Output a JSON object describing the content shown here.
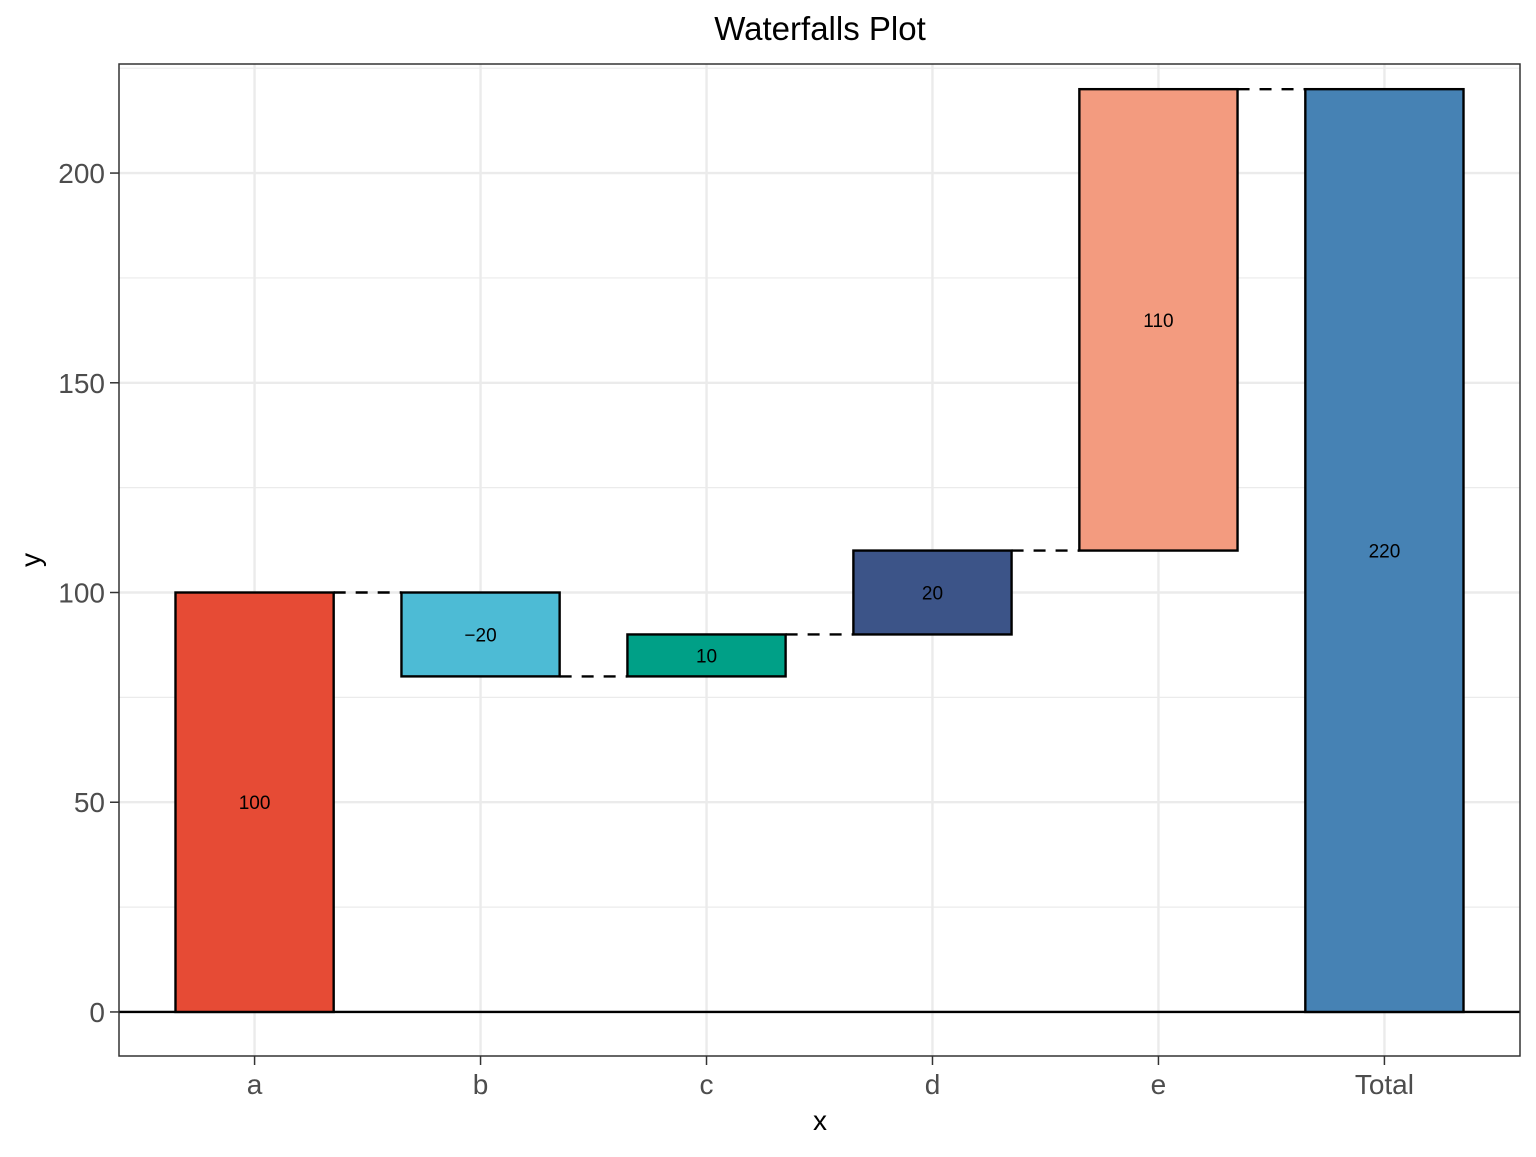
{
  "chart_data": {
    "type": "waterfall",
    "title": "Waterfalls Plot",
    "xlabel": "x",
    "ylabel": "y",
    "categories": [
      "a",
      "b",
      "c",
      "d",
      "e",
      "Total"
    ],
    "values": [
      100,
      -20,
      10,
      20,
      110,
      220
    ],
    "labels": [
      "100",
      "−20",
      "10",
      "20",
      "110",
      "220"
    ],
    "bars": [
      {
        "category": "a",
        "start": 0,
        "end": 100,
        "value": 100,
        "label": "100",
        "color": "#E64B35"
      },
      {
        "category": "b",
        "start": 100,
        "end": 80,
        "value": -20,
        "label": "−20",
        "color": "#4DBBD5"
      },
      {
        "category": "c",
        "start": 80,
        "end": 90,
        "value": 10,
        "label": "10",
        "color": "#00A087"
      },
      {
        "category": "d",
        "start": 90,
        "end": 110,
        "value": 20,
        "label": "20",
        "color": "#3C5488"
      },
      {
        "category": "e",
        "start": 110,
        "end": 220,
        "value": 110,
        "label": "110",
        "color": "#F39B7F"
      },
      {
        "category": "Total",
        "start": 0,
        "end": 220,
        "value": 220,
        "label": "220",
        "color": "#4682B4"
      }
    ],
    "connectors": [
      100,
      80,
      90,
      110,
      220
    ],
    "yticks": [
      0,
      50,
      100,
      150,
      200
    ],
    "ylim": [
      -10.5,
      226
    ],
    "grid": true,
    "legend": "none",
    "colors": {
      "a": "#E64B35",
      "b": "#4DBBD5",
      "c": "#00A087",
      "d": "#3C5488",
      "e": "#F39B7F",
      "Total": "#4682B4",
      "grid": "#EBEBEB",
      "outline": "#000000"
    }
  }
}
